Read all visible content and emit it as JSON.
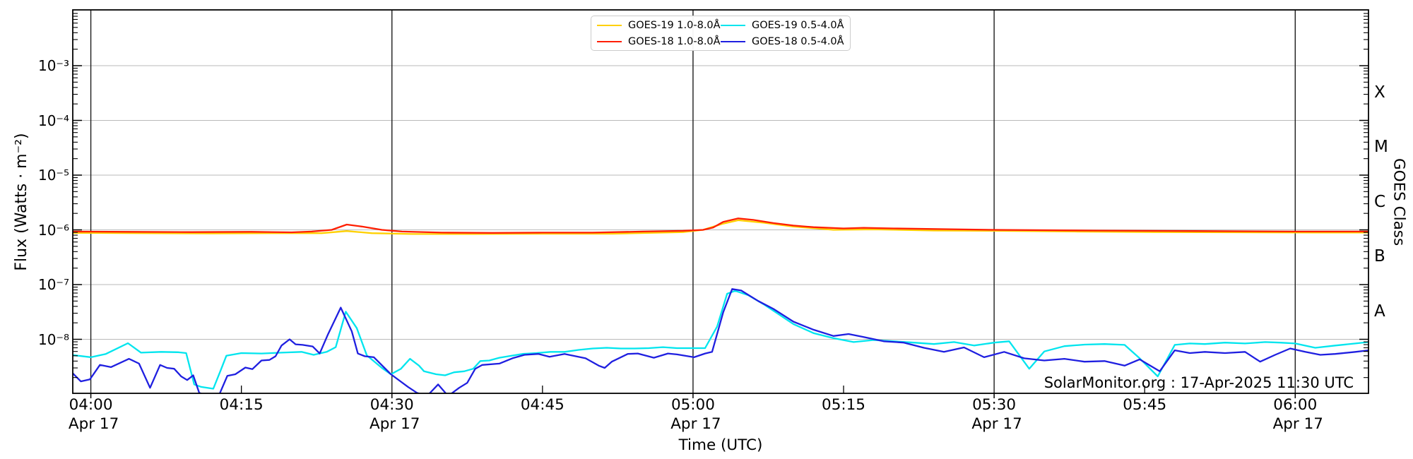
{
  "figure": {
    "watermark": "SolarMonitor.org : 17-Apr-2025 11:30 UTC",
    "xlabel": "Time (UTC)",
    "ylabel": "Flux (Watts · m⁻²)",
    "ylabel_right": "GOES Class"
  },
  "axes": {
    "x_major_ticks": [
      {
        "t": 240,
        "label": "04:00",
        "sub": "Apr 17"
      },
      {
        "t": 270,
        "label": "04:30",
        "sub": "Apr 17"
      },
      {
        "t": 300,
        "label": "05:00",
        "sub": "Apr 17"
      },
      {
        "t": 330,
        "label": "05:30",
        "sub": "Apr 17"
      },
      {
        "t": 360,
        "label": "06:00",
        "sub": "Apr 17"
      }
    ],
    "x_minor_ticks": [
      {
        "t": 255,
        "label": "04:15"
      },
      {
        "t": 285,
        "label": "04:45"
      },
      {
        "t": 315,
        "label": "05:15"
      },
      {
        "t": 345,
        "label": "05:45"
      }
    ],
    "y_ticks": [
      {
        "decade": -3,
        "label": "10⁻³"
      },
      {
        "decade": -4,
        "label": "10⁻⁴"
      },
      {
        "decade": -5,
        "label": "10⁻⁵"
      },
      {
        "decade": -6,
        "label": "10⁻⁶"
      },
      {
        "decade": -7,
        "label": "10⁻⁷"
      },
      {
        "decade": -8,
        "label": "10⁻⁸"
      }
    ],
    "goes_classes": [
      {
        "label": "X",
        "log_center": -3.5
      },
      {
        "label": "M",
        "log_center": -4.5
      },
      {
        "label": "C",
        "log_center": -5.5
      },
      {
        "label": "B",
        "log_center": -6.5
      },
      {
        "label": "A",
        "log_center": -7.5
      }
    ]
  },
  "legend": {
    "entries": [
      {
        "label": "GOES-19 1.0-8.0Å",
        "color": "#ffd000"
      },
      {
        "label": "GOES-18 1.0-8.0Å",
        "color": "#ff1e00"
      },
      {
        "label": "GOES-19 0.5-4.0Å",
        "color": "#00e5ee"
      },
      {
        "label": "GOES-18 0.5-4.0Å",
        "color": "#1f1fe0"
      }
    ]
  },
  "chart_data": {
    "type": "line",
    "title": "",
    "xlabel": "Time (UTC)",
    "ylabel": "Flux (Watts · m⁻²)",
    "x_unit": "minutes_since_midnight_utc",
    "x_range": [
      238.2,
      367.3
    ],
    "y_scale": "log",
    "y_range": [
      1e-09,
      0.01
    ],
    "gridline_decades": [
      -8,
      -7,
      -6,
      -5,
      -4,
      -3
    ],
    "grid_color_h": "#b9b9b9",
    "grid_color_v": "#1c1c1c",
    "legend_position": "upper center",
    "series": [
      {
        "name": "GOES-19 1.0-8.0Å",
        "color": "#ffd000",
        "t": [
          238,
          245,
          252,
          258,
          263,
          265.5,
          268,
          272,
          278,
          285,
          292,
          299,
          301,
          303,
          304.5,
          307,
          310,
          314,
          318,
          324,
          330,
          338,
          346,
          354,
          362,
          367.3
        ],
        "v": [
          8.8e-07,
          8.7e-07,
          8.6e-07,
          8.7e-07,
          8.7e-07,
          9.5e-07,
          8.7e-07,
          8.4e-07,
          8.4e-07,
          8.5e-07,
          8.5e-07,
          9.1e-07,
          1e-06,
          1.3e-06,
          1.5e-06,
          1.35e-06,
          1.15e-06,
          1e-06,
          1.02e-06,
          9.7e-07,
          9.6e-07,
          9.3e-07,
          9.1e-07,
          9e-07,
          8.9e-07,
          8.9e-07
        ]
      },
      {
        "name": "GOES-18 1.0-8.0Å",
        "color": "#ff1e00",
        "t": [
          238,
          244,
          250,
          256,
          260,
          262,
          264,
          265.5,
          267,
          269,
          271,
          275,
          280,
          285,
          290,
          295,
          299,
          301,
          302,
          303,
          304.5,
          306,
          308,
          310,
          312,
          315,
          317,
          320,
          325,
          330,
          340,
          350,
          360,
          367.3
        ],
        "v": [
          9.3e-07,
          9.2e-07,
          9.1e-07,
          9.2e-07,
          9e-07,
          9.3e-07,
          1e-06,
          1.25e-06,
          1.15e-06,
          1e-06,
          9.3e-07,
          8.9e-07,
          8.8e-07,
          8.9e-07,
          8.9e-07,
          9.3e-07,
          9.6e-07,
          1e-06,
          1.1e-06,
          1.4e-06,
          1.62e-06,
          1.52e-06,
          1.33e-06,
          1.2e-06,
          1.12e-06,
          1.06e-06,
          1.09e-06,
          1.06e-06,
          1.03e-06,
          1e-06,
          9.7e-07,
          9.5e-07,
          9.3e-07,
          9.3e-07
        ]
      },
      {
        "name": "GOES-19 0.5-4.0Å",
        "color": "#00e5ee",
        "t": [
          238,
          240,
          241.5,
          243.7,
          245,
          247,
          248.7,
          249.5,
          250.3,
          251,
          252.2,
          252.9,
          253.5,
          255,
          257,
          259,
          261,
          262.2,
          263.5,
          264.4,
          265.4,
          266.5,
          267.5,
          269,
          269.9,
          270.9,
          271.8,
          272.7,
          273.2,
          274.4,
          275.3,
          276.2,
          277.2,
          278.1,
          278.8,
          279.7,
          280.7,
          281.6,
          283,
          284.4,
          285.8,
          287.2,
          288.6,
          290,
          291.4,
          292.8,
          294.2,
          295.6,
          297,
          298.4,
          299.8,
          301.2,
          302.4,
          303.4,
          304.2,
          305.5,
          307,
          308.5,
          310,
          312,
          314,
          316,
          318,
          320,
          322,
          324,
          326,
          328,
          330,
          331.5,
          333.5,
          335,
          337,
          339,
          341,
          343,
          344.5,
          346.3,
          348,
          349.5,
          351,
          353,
          355,
          357,
          358.5,
          360,
          362,
          364,
          366,
          367.3
        ],
        "v": [
          5.2e-09,
          4.7e-09,
          5.4e-09,
          8.5e-09,
          5.7e-09,
          5.9e-09,
          5.8e-09,
          5.6e-09,
          1.5e-09,
          1.35e-09,
          1.25e-09,
          2.6e-09,
          5e-09,
          5.6e-09,
          5.5e-09,
          5.7e-09,
          5.9e-09,
          5.2e-09,
          5.9e-09,
          7.2e-09,
          3.2e-08,
          1.6e-08,
          5.1e-09,
          3e-09,
          2.3e-09,
          2.9e-09,
          4.4e-09,
          3.3e-09,
          2.6e-09,
          2.3e-09,
          2.2e-09,
          2.5e-09,
          2.6e-09,
          2.9e-09,
          4e-09,
          4.1e-09,
          4.6e-09,
          4.9e-09,
          5.4e-09,
          5.6e-09,
          5.9e-09,
          5.9e-09,
          6.4e-09,
          6.8e-09,
          7e-09,
          6.8e-09,
          6.8e-09,
          6.9e-09,
          7.2e-09,
          6.9e-09,
          6.9e-09,
          6.9e-09,
          1.7e-08,
          6.8e-08,
          7.7e-08,
          6.4e-08,
          4.4e-08,
          2.9e-08,
          1.9e-08,
          1.3e-08,
          1.05e-08,
          8.9e-09,
          9.7e-09,
          9.2e-09,
          8.7e-09,
          8.2e-09,
          8.9e-09,
          7.7e-09,
          8.7e-09,
          9.2e-09,
          2.9e-09,
          6e-09,
          7.5e-09,
          8e-09,
          8.2e-09,
          7.9e-09,
          4.5e-09,
          2.1e-09,
          7.9e-09,
          8.4e-09,
          8.2e-09,
          8.7e-09,
          8.4e-09,
          8.9e-09,
          8.7e-09,
          8.4e-09,
          7e-09,
          7.7e-09,
          8.4e-09,
          8.9e-09
        ]
      },
      {
        "name": "GOES-18 0.5-4.0Å",
        "color": "#1f1fe0",
        "t": [
          238,
          239,
          239.9,
          240.9,
          242,
          243.8,
          244.8,
          245.9,
          246.9,
          247.6,
          248.3,
          249,
          249.6,
          250.2,
          250.8,
          251.5,
          252.8,
          253.6,
          254.4,
          255.4,
          256.1,
          257,
          257.8,
          258.4,
          259,
          259.8,
          260.4,
          261.1,
          262.1,
          262.8,
          263.6,
          264.9,
          266,
          266.6,
          267.3,
          268.2,
          269.9,
          271.6,
          272.5,
          273.5,
          274.6,
          275.6,
          276.7,
          277.5,
          278.3,
          279,
          280.7,
          282,
          283.2,
          284.6,
          285.7,
          287.2,
          289.3,
          290.6,
          291.2,
          291.9,
          293.5,
          294.5,
          296.1,
          297.5,
          298.4,
          300.1,
          301.2,
          301.9,
          303,
          303.9,
          304.8,
          306.5,
          308,
          310,
          312,
          314,
          315.5,
          317,
          319,
          321,
          323,
          325,
          327,
          329,
          331,
          333,
          335,
          337,
          339,
          341,
          343,
          344.5,
          346.5,
          348,
          349.5,
          351,
          353,
          355,
          356.5,
          358,
          359.5,
          361,
          362.5,
          364,
          366,
          367.3
        ],
        "v": [
          2.6e-09,
          1.7e-09,
          1.85e-09,
          3.4e-09,
          3.1e-09,
          4.4e-09,
          3.6e-09,
          1.3e-09,
          3.4e-09,
          3e-09,
          2.9e-09,
          2.1e-09,
          1.8e-09,
          2.2e-09,
          1.05e-09,
          9.5e-10,
          9.8e-10,
          2.15e-09,
          2.3e-09,
          3.05e-09,
          2.85e-09,
          4.1e-09,
          4.2e-09,
          4.9e-09,
          7.7e-09,
          1e-08,
          8.1e-09,
          7.9e-09,
          7.4e-09,
          5.5e-09,
          1.2e-08,
          3.8e-08,
          1.4e-08,
          5.5e-09,
          4.9e-09,
          4.7e-09,
          2.3e-09,
          1.35e-09,
          1.05e-09,
          9.2e-10,
          1.5e-09,
          9.2e-10,
          1.3e-09,
          1.6e-09,
          2.9e-09,
          3.4e-09,
          3.6e-09,
          4.5e-09,
          5.2e-09,
          5.4e-09,
          4.8e-09,
          5.4e-09,
          4.5e-09,
          3.3e-09,
          3e-09,
          3.9e-09,
          5.4e-09,
          5.5e-09,
          4.6e-09,
          5.5e-09,
          5.3e-09,
          4.7e-09,
          5.5e-09,
          5.9e-09,
          3.1e-08,
          8.3e-08,
          7.8e-08,
          5e-08,
          3.6e-08,
          2.1e-08,
          1.5e-08,
          1.15e-08,
          1.25e-08,
          1.1e-08,
          9.2e-09,
          8.7e-09,
          7e-09,
          5.9e-09,
          7.1e-09,
          4.7e-09,
          5.9e-09,
          4.5e-09,
          4.1e-09,
          4.4e-09,
          3.9e-09,
          4e-09,
          3.3e-09,
          4.3e-09,
          2.6e-09,
          6.3e-09,
          5.6e-09,
          5.9e-09,
          5.6e-09,
          5.9e-09,
          3.9e-09,
          5.2e-09,
          6.8e-09,
          5.9e-09,
          5.2e-09,
          5.4e-09,
          5.9e-09,
          6.3e-09
        ]
      }
    ]
  }
}
